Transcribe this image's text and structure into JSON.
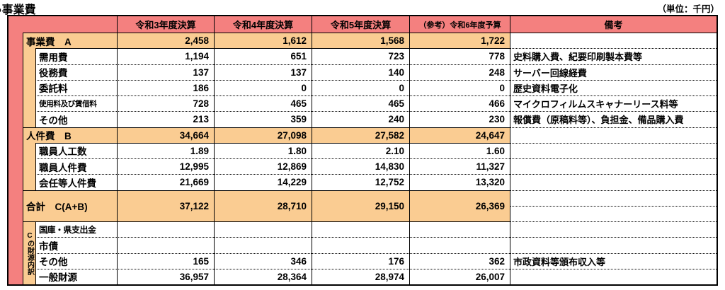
{
  "title": "●事業費",
  "unit_note": "（単位：千円）",
  "colors": {
    "header_pink": "#F4807F",
    "section_orange": "#FACC92",
    "grid_line": "#000000"
  },
  "header": {
    "cols": [
      "令和3年度決算",
      "令和4年度決算",
      "令和5年度決算",
      "（参考）令和6年度予算",
      "備考"
    ]
  },
  "source_group_label": "Cの財源内訳",
  "rows": [
    {
      "label": "事業費　A",
      "type": "section",
      "values": [
        "2,458",
        "1,612",
        "1,568",
        "1,722"
      ],
      "remark": ""
    },
    {
      "label": "需用費",
      "type": "sub",
      "values": [
        "1,194",
        "651",
        "723",
        "778"
      ],
      "remark": "史料購入費、紀要印刷製本費等"
    },
    {
      "label": "役務費",
      "type": "sub",
      "values": [
        "137",
        "137",
        "140",
        "248"
      ],
      "remark": "サーバー回線経費"
    },
    {
      "label": "委託料",
      "type": "sub",
      "values": [
        "186",
        "0",
        "0",
        "0"
      ],
      "remark": "歴史資料電子化"
    },
    {
      "label": "使用料及び賃借料",
      "type": "sub",
      "values": [
        "728",
        "465",
        "465",
        "466"
      ],
      "remark": "マイクロフィルムスキャナーリース料等"
    },
    {
      "label": "その他",
      "type": "sub",
      "values": [
        "213",
        "359",
        "240",
        "230"
      ],
      "remark": "報償費（原稿料等）、負担金、備品購入費"
    },
    {
      "label": "人件費　B",
      "type": "section",
      "values": [
        "34,664",
        "27,098",
        "27,582",
        "24,647"
      ],
      "remark": ""
    },
    {
      "label": "職員人工数",
      "type": "sub",
      "values": [
        "1.89",
        "1.80",
        "2.10",
        "1.60"
      ],
      "remark": ""
    },
    {
      "label": "職員人件費",
      "type": "sub",
      "values": [
        "12,995",
        "12,869",
        "14,830",
        "11,327"
      ],
      "remark": ""
    },
    {
      "label": "会任等人件費",
      "type": "sub",
      "values": [
        "21,669",
        "14,229",
        "12,752",
        "13,320"
      ],
      "remark": ""
    },
    {
      "label": "合計　C(A+B)",
      "type": "total",
      "values": [
        "37,122",
        "28,710",
        "29,150",
        "26,369"
      ],
      "remark": ""
    },
    {
      "label": "国庫・県支出金",
      "type": "source",
      "values": [
        "",
        "",
        "",
        ""
      ],
      "remark": ""
    },
    {
      "label": "市債",
      "type": "source",
      "values": [
        "",
        "",
        "",
        ""
      ],
      "remark": ""
    },
    {
      "label": "その他",
      "type": "source",
      "values": [
        "165",
        "346",
        "176",
        "362"
      ],
      "remark": "市政資料等頒布収入等"
    },
    {
      "label": "一般財源",
      "type": "source",
      "values": [
        "36,957",
        "28,364",
        "28,974",
        "26,007"
      ],
      "remark": ""
    }
  ]
}
